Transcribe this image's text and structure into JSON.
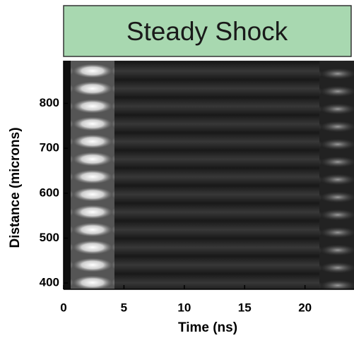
{
  "chart_data": {
    "type": "image",
    "title": "Steady Shock",
    "x_label": "Time (ns)",
    "y_label": "Distance (microns)",
    "xlim": [
      0,
      24
    ],
    "xticks": [
      0,
      5,
      10,
      15,
      20
    ],
    "ylim": [
      386,
      895
    ],
    "yticks": [
      400,
      500,
      600,
      700,
      800
    ]
  }
}
